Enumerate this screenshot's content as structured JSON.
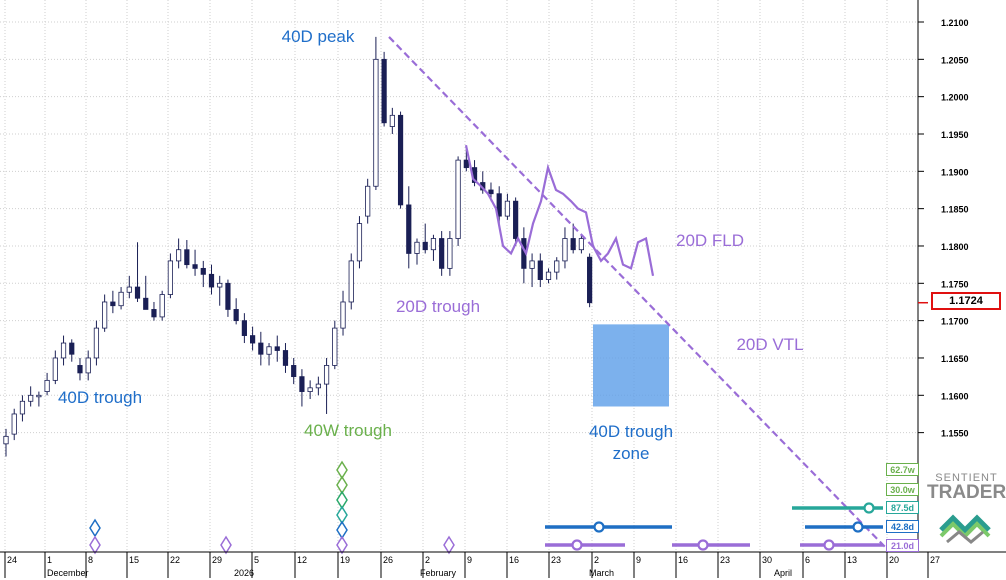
{
  "chart_data": {
    "type": "candlestick",
    "title": "",
    "xlabel": "",
    "ylabel": "",
    "ylim": [
      1.149,
      1.213
    ],
    "grid": true,
    "x_axis": {
      "day_ticks": [
        "24",
        "1",
        "8",
        "15",
        "22",
        "29",
        "5",
        "12",
        "19",
        "26",
        "2",
        "9",
        "16",
        "23",
        "2",
        "9",
        "16",
        "23",
        "30",
        "6",
        "13",
        "20",
        "27"
      ],
      "month_labels": [
        "December",
        "2026",
        "February",
        "March",
        "April"
      ]
    },
    "y_ticks": [
      "1.2100",
      "1.2050",
      "1.2000",
      "1.1950",
      "1.1900",
      "1.1850",
      "1.1800",
      "1.1750",
      "1.1700",
      "1.1650",
      "1.1600",
      "1.1550"
    ],
    "current_price": "1.1724",
    "candles": [
      {
        "o": 1.1535,
        "h": 1.1555,
        "l": 1.1518,
        "c": 1.1545
      },
      {
        "o": 1.1548,
        "h": 1.1582,
        "l": 1.154,
        "c": 1.1575
      },
      {
        "o": 1.1575,
        "h": 1.16,
        "l": 1.1565,
        "c": 1.1592
      },
      {
        "o": 1.1592,
        "h": 1.1612,
        "l": 1.1585,
        "c": 1.16
      },
      {
        "o": 1.1598,
        "h": 1.1605,
        "l": 1.1585,
        "c": 1.16
      },
      {
        "o": 1.1605,
        "h": 1.163,
        "l": 1.16,
        "c": 1.162
      },
      {
        "o": 1.162,
        "h": 1.166,
        "l": 1.1615,
        "c": 1.165
      },
      {
        "o": 1.165,
        "h": 1.168,
        "l": 1.164,
        "c": 1.167
      },
      {
        "o": 1.167,
        "h": 1.1675,
        "l": 1.1645,
        "c": 1.1655
      },
      {
        "o": 1.164,
        "h": 1.165,
        "l": 1.162,
        "c": 1.163
      },
      {
        "o": 1.163,
        "h": 1.166,
        "l": 1.162,
        "c": 1.165
      },
      {
        "o": 1.165,
        "h": 1.17,
        "l": 1.164,
        "c": 1.169
      },
      {
        "o": 1.169,
        "h": 1.1735,
        "l": 1.1685,
        "c": 1.1725
      },
      {
        "o": 1.1725,
        "h": 1.174,
        "l": 1.171,
        "c": 1.172
      },
      {
        "o": 1.172,
        "h": 1.1745,
        "l": 1.1715,
        "c": 1.1738
      },
      {
        "o": 1.1738,
        "h": 1.176,
        "l": 1.173,
        "c": 1.1745
      },
      {
        "o": 1.1745,
        "h": 1.1805,
        "l": 1.1725,
        "c": 1.173
      },
      {
        "o": 1.173,
        "h": 1.176,
        "l": 1.1715,
        "c": 1.1715
      },
      {
        "o": 1.1715,
        "h": 1.1725,
        "l": 1.17,
        "c": 1.1705
      },
      {
        "o": 1.1705,
        "h": 1.174,
        "l": 1.17,
        "c": 1.1735
      },
      {
        "o": 1.1735,
        "h": 1.179,
        "l": 1.173,
        "c": 1.178
      },
      {
        "o": 1.178,
        "h": 1.181,
        "l": 1.177,
        "c": 1.1795
      },
      {
        "o": 1.1795,
        "h": 1.1808,
        "l": 1.177,
        "c": 1.1775
      },
      {
        "o": 1.1775,
        "h": 1.1795,
        "l": 1.176,
        "c": 1.177
      },
      {
        "o": 1.177,
        "h": 1.178,
        "l": 1.1745,
        "c": 1.1762
      },
      {
        "o": 1.1762,
        "h": 1.1775,
        "l": 1.1735,
        "c": 1.1745
      },
      {
        "o": 1.1745,
        "h": 1.176,
        "l": 1.172,
        "c": 1.175
      },
      {
        "o": 1.175,
        "h": 1.1755,
        "l": 1.1705,
        "c": 1.1715
      },
      {
        "o": 1.1715,
        "h": 1.173,
        "l": 1.1695,
        "c": 1.17
      },
      {
        "o": 1.17,
        "h": 1.171,
        "l": 1.167,
        "c": 1.168
      },
      {
        "o": 1.168,
        "h": 1.1692,
        "l": 1.166,
        "c": 1.167
      },
      {
        "o": 1.167,
        "h": 1.1685,
        "l": 1.164,
        "c": 1.1655
      },
      {
        "o": 1.1655,
        "h": 1.167,
        "l": 1.164,
        "c": 1.1665
      },
      {
        "o": 1.1665,
        "h": 1.168,
        "l": 1.1645,
        "c": 1.166
      },
      {
        "o": 1.166,
        "h": 1.167,
        "l": 1.163,
        "c": 1.164
      },
      {
        "o": 1.164,
        "h": 1.165,
        "l": 1.1615,
        "c": 1.1625
      },
      {
        "o": 1.1625,
        "h": 1.1635,
        "l": 1.1585,
        "c": 1.1605
      },
      {
        "o": 1.1605,
        "h": 1.162,
        "l": 1.1595,
        "c": 1.161
      },
      {
        "o": 1.161,
        "h": 1.1625,
        "l": 1.16,
        "c": 1.1615
      },
      {
        "o": 1.1615,
        "h": 1.165,
        "l": 1.1575,
        "c": 1.164
      },
      {
        "o": 1.164,
        "h": 1.17,
        "l": 1.1635,
        "c": 1.169
      },
      {
        "o": 1.169,
        "h": 1.174,
        "l": 1.168,
        "c": 1.1725
      },
      {
        "o": 1.1725,
        "h": 1.179,
        "l": 1.1715,
        "c": 1.178
      },
      {
        "o": 1.178,
        "h": 1.184,
        "l": 1.177,
        "c": 1.183
      },
      {
        "o": 1.184,
        "h": 1.189,
        "l": 1.183,
        "c": 1.188
      },
      {
        "o": 1.188,
        "h": 1.208,
        "l": 1.1875,
        "c": 1.205
      },
      {
        "o": 1.205,
        "h": 1.206,
        "l": 1.196,
        "c": 1.1965
      },
      {
        "o": 1.196,
        "h": 1.1985,
        "l": 1.195,
        "c": 1.1975
      },
      {
        "o": 1.1975,
        "h": 1.198,
        "l": 1.185,
        "c": 1.1855
      },
      {
        "o": 1.1855,
        "h": 1.188,
        "l": 1.177,
        "c": 1.179
      },
      {
        "o": 1.179,
        "h": 1.181,
        "l": 1.1775,
        "c": 1.1805
      },
      {
        "o": 1.1805,
        "h": 1.183,
        "l": 1.179,
        "c": 1.1795
      },
      {
        "o": 1.1795,
        "h": 1.1815,
        "l": 1.178,
        "c": 1.181
      },
      {
        "o": 1.181,
        "h": 1.182,
        "l": 1.176,
        "c": 1.177
      },
      {
        "o": 1.177,
        "h": 1.182,
        "l": 1.176,
        "c": 1.181
      },
      {
        "o": 1.181,
        "h": 1.192,
        "l": 1.18,
        "c": 1.1915
      },
      {
        "o": 1.1915,
        "h": 1.193,
        "l": 1.19,
        "c": 1.1905
      },
      {
        "o": 1.1905,
        "h": 1.1915,
        "l": 1.188,
        "c": 1.1885
      },
      {
        "o": 1.1885,
        "h": 1.19,
        "l": 1.187,
        "c": 1.1875
      },
      {
        "o": 1.1875,
        "h": 1.1885,
        "l": 1.186,
        "c": 1.187
      },
      {
        "o": 1.187,
        "h": 1.188,
        "l": 1.183,
        "c": 1.184
      },
      {
        "o": 1.184,
        "h": 1.187,
        "l": 1.1835,
        "c": 1.186
      },
      {
        "o": 1.186,
        "h": 1.1865,
        "l": 1.18,
        "c": 1.181
      },
      {
        "o": 1.181,
        "h": 1.1825,
        "l": 1.175,
        "c": 1.177
      },
      {
        "o": 1.177,
        "h": 1.179,
        "l": 1.1745,
        "c": 1.178
      },
      {
        "o": 1.178,
        "h": 1.179,
        "l": 1.1745,
        "c": 1.1755
      },
      {
        "o": 1.1755,
        "h": 1.177,
        "l": 1.175,
        "c": 1.1765
      },
      {
        "o": 1.1765,
        "h": 1.1785,
        "l": 1.1755,
        "c": 1.178
      },
      {
        "o": 1.178,
        "h": 1.1825,
        "l": 1.177,
        "c": 1.181
      },
      {
        "o": 1.181,
        "h": 1.183,
        "l": 1.179,
        "c": 1.1795
      },
      {
        "o": 1.1795,
        "h": 1.1815,
        "l": 1.179,
        "c": 1.181
      },
      {
        "o": 1.1785,
        "h": 1.179,
        "l": 1.1718,
        "c": 1.1724
      }
    ],
    "fld": [
      [
        1.1935,
        1.189
      ],
      [
        1.188,
        1.187
      ],
      [
        1.185,
        1.18
      ],
      [
        1.179,
        1.181
      ],
      [
        1.179,
        1.183
      ],
      [
        1.186,
        1.1905
      ],
      [
        1.1875,
        1.187
      ],
      [
        1.186,
        1.185
      ],
      [
        1.1845,
        1.18
      ],
      [
        1.178,
        1.179
      ],
      [
        1.181,
        1.1775
      ],
      [
        1.177,
        1.1805
      ],
      [
        1.181,
        1.176
      ]
    ],
    "vtl": {
      "from": 1.208,
      "to": 1.152
    },
    "trough_zone": {
      "low": 1.1585,
      "high": 1.1695
    },
    "annotations": [
      "40D peak",
      "40D trough",
      "40W trough",
      "20D trough",
      "20D FLD",
      "20D VTL",
      "40D trough",
      "zone"
    ],
    "cycle_badges": [
      {
        "label": "62.7w",
        "color": "#6ab04c"
      },
      {
        "label": "30.0w",
        "color": "#6ab04c"
      },
      {
        "label": "87.5d",
        "color": "#27a79a"
      },
      {
        "label": "42.8d",
        "color": "#1e6fc4"
      },
      {
        "label": "21.0d",
        "color": "#9a6dd7"
      }
    ],
    "colors": {
      "up": "#ffffff",
      "down": "#1a1f55",
      "outline": "#1a1f55",
      "fld": "#9a6dd7",
      "vtl": "#9a6dd7",
      "zone": "#5b9ee8",
      "blue_text": "#1f6ec9",
      "green_text": "#6ab04c",
      "purple_text": "#9a6dd7"
    }
  },
  "logo": {
    "top": "SENTIENT",
    "bottom": "TRADER"
  }
}
